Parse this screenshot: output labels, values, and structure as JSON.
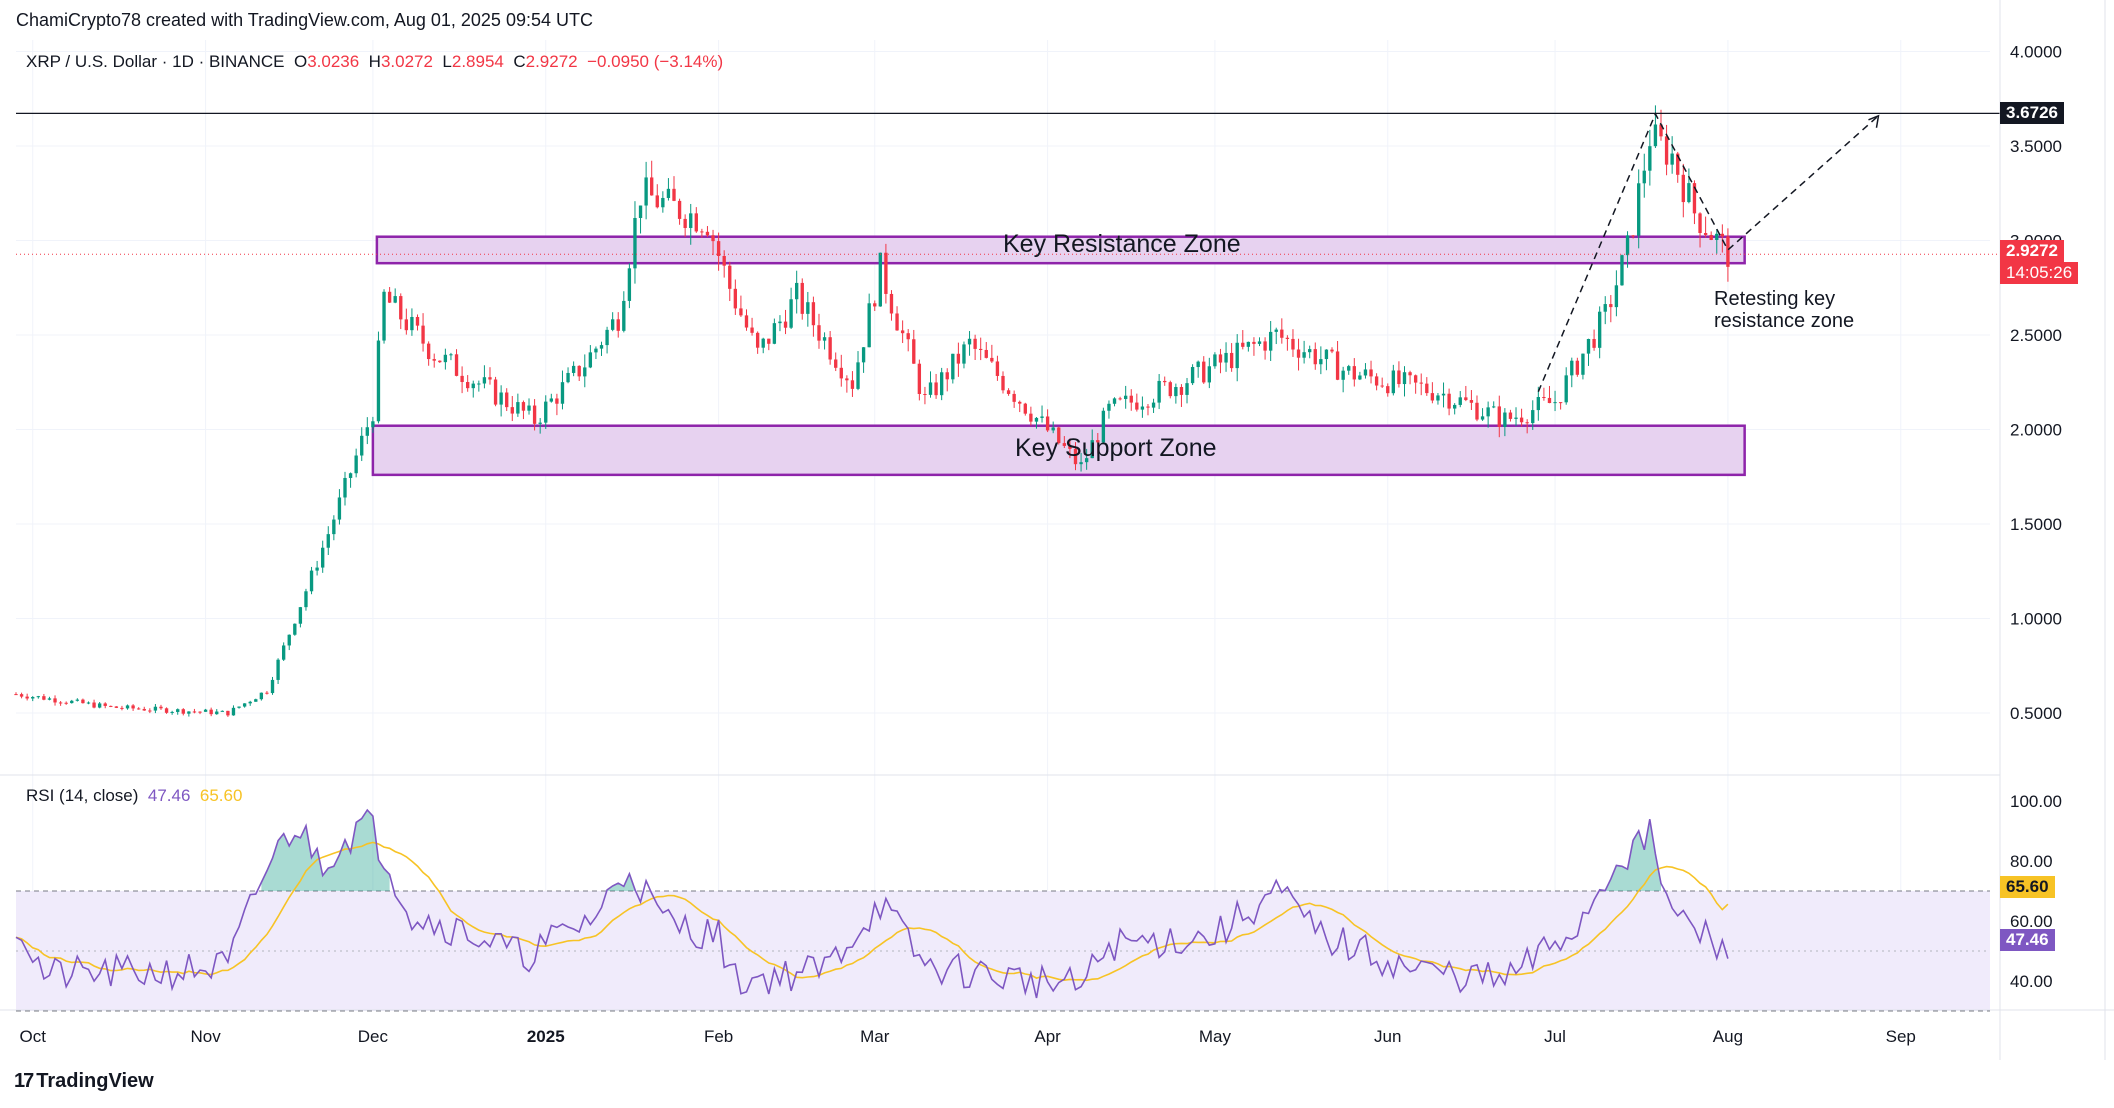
{
  "header": {
    "credit": "ChamiCrypto78 created with TradingView.com, Aug 01, 2025 09:54 UTC"
  },
  "legend": {
    "symbol": "XRP / U.S. Dollar · 1D · BINANCE",
    "o_label": "O",
    "o": "3.0236",
    "h_label": "H",
    "h": "3.0272",
    "l_label": "L",
    "l": "2.8954",
    "c_label": "C",
    "c": "2.9272",
    "change": "−0.0950 (−3.14%)"
  },
  "rsi_legend": {
    "label": "RSI (14, close)",
    "rsi": "47.46",
    "ma": "65.60"
  },
  "annotations": {
    "resistance": "Key Resistance Zone",
    "support": "Key Support Zone",
    "note_line1": "Retesting key",
    "note_line2": "resistance zone"
  },
  "badges": {
    "level": "3.6726",
    "price": "2.9272",
    "countdown": "14:05:26",
    "rsi_ma": "65.60",
    "rsi": "47.46"
  },
  "footer": {
    "logo": "17",
    "brand": "TradingView"
  },
  "colors": {
    "up": "#089981",
    "down": "#f23645",
    "zone_fill": "#e7d2f0",
    "zone_border": "#8e24aa",
    "rsi_line": "#7e57c2",
    "rsi_ma": "#f7c325",
    "rsi_band": "#f0ebfb"
  },
  "chart_data": [
    {
      "type": "candlestick",
      "title": "XRP / U.S. Dollar · 1D · BINANCE",
      "x_ticks": [
        "Oct",
        "Nov",
        "Dec",
        "2025",
        "Feb",
        "Mar",
        "Apr",
        "May",
        "Jun",
        "Jul",
        "Aug",
        "Sep"
      ],
      "y_ticks": [
        "0.5000",
        "1.0000",
        "1.5000",
        "2.0000",
        "2.5000",
        "3.0000",
        "3.5000",
        "4.0000"
      ],
      "ylim": [
        0.2,
        4.0
      ],
      "date_range": [
        "2024-09-28",
        "2025-08-01"
      ],
      "ohlc_last": {
        "open": 3.0236,
        "high": 3.0272,
        "low": 2.8954,
        "close": 2.9272
      },
      "horizontal_level": 3.6726,
      "zones": [
        {
          "name": "Key Resistance Zone",
          "low": 2.88,
          "high": 3.02,
          "from": "2024-12-01",
          "to": "2025-08-04"
        },
        {
          "name": "Key Support Zone",
          "low": 1.76,
          "high": 2.02,
          "from": "2024-12-01",
          "to": "2025-08-04"
        }
      ],
      "approx_close_path": [
        [
          "2024-09-28",
          0.6
        ],
        [
          "2024-10-15",
          0.53
        ],
        [
          "2024-11-05",
          0.5
        ],
        [
          "2024-11-12",
          0.62
        ],
        [
          "2024-11-23",
          1.45
        ],
        [
          "2024-12-01",
          2.1
        ],
        [
          "2024-12-03",
          2.7
        ],
        [
          "2024-12-12",
          2.4
        ],
        [
          "2024-12-30",
          2.05
        ],
        [
          "2025-01-08",
          2.35
        ],
        [
          "2025-01-14",
          2.6
        ],
        [
          "2025-01-18",
          3.25
        ],
        [
          "2025-01-30",
          3.1
        ],
        [
          "2025-02-03",
          2.75
        ],
        [
          "2025-02-08",
          2.4
        ],
        [
          "2025-02-15",
          2.7
        ],
        [
          "2025-02-25",
          2.25
        ],
        [
          "2025-03-02",
          2.85
        ],
        [
          "2025-03-10",
          2.15
        ],
        [
          "2025-03-18",
          2.45
        ],
        [
          "2025-04-07",
          1.8
        ],
        [
          "2025-04-12",
          2.1
        ],
        [
          "2025-04-25",
          2.25
        ],
        [
          "2025-05-12",
          2.5
        ],
        [
          "2025-05-25",
          2.3
        ],
        [
          "2025-06-10",
          2.2
        ],
        [
          "2025-06-22",
          2.05
        ],
        [
          "2025-07-01",
          2.15
        ],
        [
          "2025-07-10",
          2.6
        ],
        [
          "2025-07-14",
          2.95
        ],
        [
          "2025-07-18",
          3.55
        ],
        [
          "2025-07-22",
          3.45
        ],
        [
          "2025-07-26",
          3.15
        ],
        [
          "2025-08-01",
          2.93
        ]
      ]
    },
    {
      "type": "line",
      "title": "RSI (14, close)",
      "y_ticks": [
        "40.00",
        "60.00",
        "80.00",
        "100.00"
      ],
      "ylim": [
        30,
        100
      ],
      "band": [
        30,
        70
      ],
      "series": [
        {
          "name": "RSI",
          "last": 47.46
        },
        {
          "name": "RSI-based MA",
          "last": 65.6
        }
      ],
      "approx_rsi_path": [
        [
          "2024-09-28",
          60
        ],
        [
          "2024-10-03",
          42
        ],
        [
          "2024-10-25",
          43
        ],
        [
          "2024-11-05",
          45
        ],
        [
          "2024-11-12",
          78
        ],
        [
          "2024-11-17",
          92
        ],
        [
          "2024-11-22",
          80
        ],
        [
          "2024-11-30",
          94
        ],
        [
          "2024-12-08",
          62
        ],
        [
          "2024-12-20",
          55
        ],
        [
          "2024-12-28",
          48
        ],
        [
          "2025-01-10",
          62
        ],
        [
          "2025-01-16",
          78
        ],
        [
          "2025-01-22",
          60
        ],
        [
          "2025-02-01",
          55
        ],
        [
          "2025-02-04",
          40
        ],
        [
          "2025-02-20",
          44
        ],
        [
          "2025-03-02",
          66
        ],
        [
          "2025-03-10",
          45
        ],
        [
          "2025-04-07",
          38
        ],
        [
          "2025-04-12",
          52
        ],
        [
          "2025-05-01",
          55
        ],
        [
          "2025-05-12",
          70
        ],
        [
          "2025-05-20",
          55
        ],
        [
          "2025-06-05",
          44
        ],
        [
          "2025-06-22",
          40
        ],
        [
          "2025-07-05",
          58
        ],
        [
          "2025-07-12",
          80
        ],
        [
          "2025-07-18",
          88
        ],
        [
          "2025-07-22",
          62
        ],
        [
          "2025-07-28",
          55
        ],
        [
          "2025-08-01",
          47.46
        ]
      ]
    }
  ]
}
